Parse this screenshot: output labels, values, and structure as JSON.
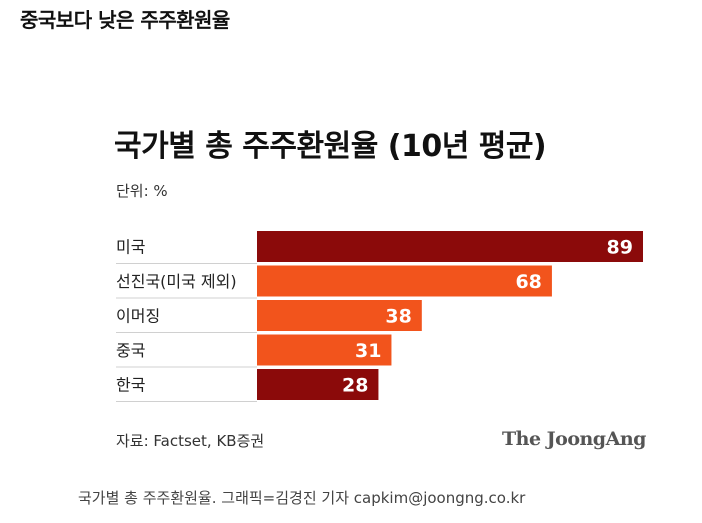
{
  "article": {
    "headline": "중국보다 낮은 주주환원율",
    "caption": "국가별 총 주주환원율. 그래픽=김경진 기자 capkim@joongng.co.kr"
  },
  "chart_data": {
    "type": "bar",
    "orientation": "horizontal",
    "title": "국가별 총 주주환원율 (10년 평균)",
    "unit_label": "단위: %",
    "categories": [
      "미국",
      "선진국(미국 제외)",
      "이머징",
      "중국",
      "한국"
    ],
    "values": [
      89,
      68,
      38,
      31,
      28
    ],
    "bar_colors": [
      "#8b0a0a",
      "#f2541c",
      "#f2541c",
      "#f2541c",
      "#8b0a0a"
    ],
    "xlim": [
      0,
      89
    ],
    "grid": false,
    "source": "자료: Factset, KB증권",
    "logo": "The JoongAng"
  }
}
